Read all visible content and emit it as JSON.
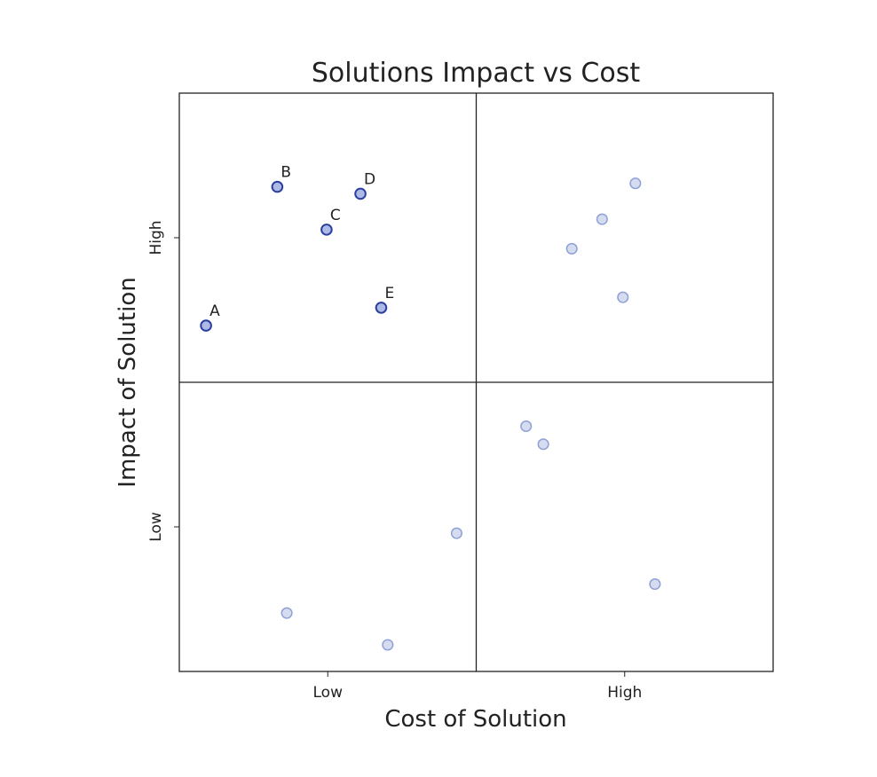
{
  "chart_data": {
    "type": "scatter",
    "title": "Solutions Impact vs Cost",
    "xlabel": "Cost of Solution",
    "ylabel": "Impact of Solution",
    "xlim": [
      0,
      1
    ],
    "ylim": [
      0,
      1
    ],
    "x_ticks": [
      {
        "value": 0.25,
        "label": "Low"
      },
      {
        "value": 0.75,
        "label": "High"
      }
    ],
    "y_ticks": [
      {
        "value": 0.25,
        "label": "Low"
      },
      {
        "value": 0.75,
        "label": "High"
      }
    ],
    "quadrant_dividers": {
      "x": 0.5,
      "y": 0.5
    },
    "grid": false,
    "colors": {
      "point_edge": "#2a3fa0",
      "point_fill_highlight": "#aebae6",
      "point_fill_background": "#d5dcf0",
      "point_edge_background": "#8fa0d6",
      "axes": "#222222"
    },
    "series": [
      {
        "name": "",
        "style": "highlight",
        "points": [
          {
            "label": "A",
            "x": 0.045,
            "y": 0.598
          },
          {
            "label": "B",
            "x": 0.165,
            "y": 0.838
          },
          {
            "label": "C",
            "x": 0.248,
            "y": 0.764
          },
          {
            "label": "D",
            "x": 0.305,
            "y": 0.826
          },
          {
            "label": "E",
            "x": 0.34,
            "y": 0.629
          }
        ]
      },
      {
        "name": "",
        "style": "background",
        "points": [
          {
            "label": "",
            "x": 0.768,
            "y": 0.844
          },
          {
            "label": "",
            "x": 0.712,
            "y": 0.782
          },
          {
            "label": "",
            "x": 0.661,
            "y": 0.731
          },
          {
            "label": "",
            "x": 0.747,
            "y": 0.647
          },
          {
            "label": "",
            "x": 0.584,
            "y": 0.424
          },
          {
            "label": "",
            "x": 0.613,
            "y": 0.393
          },
          {
            "label": "",
            "x": 0.467,
            "y": 0.239
          },
          {
            "label": "",
            "x": 0.801,
            "y": 0.151
          },
          {
            "label": "",
            "x": 0.181,
            "y": 0.101
          },
          {
            "label": "",
            "x": 0.351,
            "y": 0.046
          }
        ]
      }
    ]
  }
}
